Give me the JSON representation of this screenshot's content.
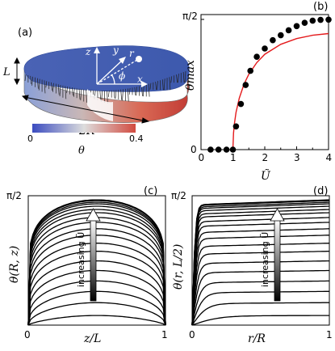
{
  "panel_a": {
    "label": "(a)",
    "dim_L": "L",
    "dim_2R": "2R",
    "axis_z": "z",
    "axis_y": "y",
    "axis_x": "x",
    "axis_r": "r",
    "angle_phi": "ϕ",
    "colorbar": {
      "min_label": "0",
      "max_label": "0.4",
      "symbol": "θ",
      "color_low": "#3b4cc0",
      "color_mid": "#dddddd",
      "color_high": "#d24b40"
    }
  },
  "chart_data": [
    {
      "panel_label": "(b)",
      "type": "scatter",
      "ylabel": "θmax",
      "xlabel": "Ũ",
      "x_ticks": [
        "0",
        "1",
        "2",
        "3",
        "4"
      ],
      "y_ticks": [
        "0",
        "π/2"
      ],
      "xlim": [
        0,
        4
      ],
      "ylim": [
        0,
        1.5708
      ],
      "series": [
        {
          "style": "points",
          "color": "#000000",
          "x": [
            0.3,
            0.55,
            0.8,
            1.0,
            1.1,
            1.25,
            1.4,
            1.55,
            1.75,
            2.0,
            2.25,
            2.5,
            2.75,
            3.0,
            3.25,
            3.5,
            3.75,
            4.0
          ],
          "y": [
            0,
            0,
            0,
            0,
            0.28,
            0.55,
            0.78,
            0.95,
            1.12,
            1.22,
            1.32,
            1.38,
            1.44,
            1.49,
            1.53,
            1.555,
            1.565,
            1.568
          ]
        },
        {
          "style": "line",
          "color": "#e41a1c",
          "x": [
            1.0,
            1.02,
            1.05,
            1.1,
            1.2,
            1.35,
            1.5,
            1.75,
            2.0,
            2.5,
            3.0,
            3.5,
            4.0
          ],
          "y": [
            0,
            0.2,
            0.32,
            0.45,
            0.62,
            0.79,
            0.91,
            1.05,
            1.15,
            1.27,
            1.34,
            1.38,
            1.4
          ]
        }
      ]
    },
    {
      "panel_label": "(c)",
      "type": "line",
      "ylabel": "θ(R, z)",
      "xlabel": "z/L",
      "x_ticks": [
        "0",
        "1"
      ],
      "y_ticks": [
        "0",
        "π/2"
      ],
      "xlim": [
        0,
        1
      ],
      "ylim": [
        0,
        1.5708
      ],
      "arrow_label": "increasing Ũ",
      "series_amplitudes": [
        0.12,
        0.28,
        0.42,
        0.55,
        0.68,
        0.8,
        0.92,
        1.02,
        1.12,
        1.2,
        1.28,
        1.34,
        1.4,
        1.44,
        1.48,
        1.51,
        1.53,
        1.55,
        1.56
      ]
    },
    {
      "panel_label": "(d)",
      "type": "line",
      "ylabel": "θ(r, L/2)",
      "xlabel": "r/R",
      "x_ticks": [
        "0",
        "1"
      ],
      "y_ticks": [
        "0",
        "π/2"
      ],
      "xlim": [
        0,
        1
      ],
      "ylim": [
        0,
        1.5708
      ],
      "arrow_label": "increasing Ũ",
      "series_amplitudes": [
        0.12,
        0.28,
        0.42,
        0.55,
        0.68,
        0.8,
        0.92,
        1.02,
        1.12,
        1.2,
        1.28,
        1.34,
        1.4,
        1.44,
        1.48,
        1.51,
        1.53,
        1.55,
        1.56
      ]
    }
  ]
}
